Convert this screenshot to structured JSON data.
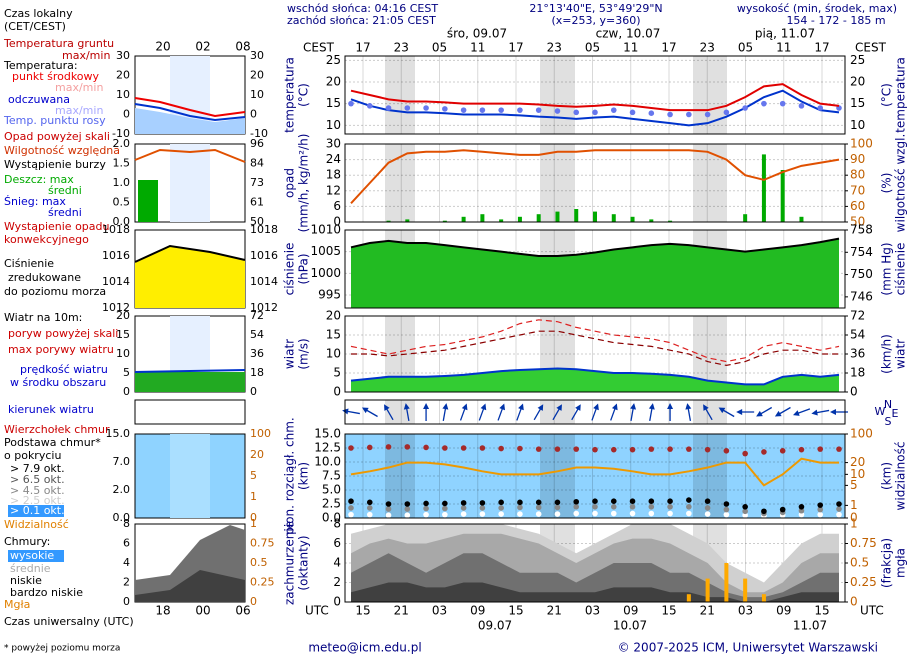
{
  "header": {
    "sunrise": "wschód słońca: 04:16 CEST",
    "sunset": "zachód słońca: 21:05 CEST",
    "coords": "21°13'40\"E, 53°49'29\"N",
    "grid_point": "(x=253,  y=360)",
    "height_title": "wysokość (min, środek, max)",
    "heights": "154 - 172 - 185 m"
  },
  "time_axis": {
    "local_label": "CEST",
    "local_ticks": [
      "17",
      "23",
      "05",
      "11",
      "17",
      "23",
      "05",
      "11",
      "17",
      "23",
      "05",
      "11",
      "17"
    ],
    "days": [
      "śro, 09.07",
      "czw, 10.07",
      "pią, 11.07"
    ],
    "utc_label": "UTC",
    "utc_ticks": [
      "15",
      "21",
      "03",
      "09",
      "15",
      "21",
      "03",
      "09",
      "15",
      "21",
      "03",
      "09",
      "15"
    ],
    "dates": [
      "09.07",
      "10.07",
      "11.07"
    ]
  },
  "legend": {
    "items": [
      "Czas lokalny",
      "(CET/CEST)",
      "Temperatura gruntu",
      "max/min",
      "Temperatura:",
      "punkt środkowy",
      "max/min",
      "odczuwana",
      "max/min",
      "Temp. punktu rosy",
      "Opad powyżej skali",
      "Wilgotność względna",
      "Wystąpienie burzy",
      "Deszcz: max",
      "średni",
      "Śnieg: max",
      "średni",
      "Wystąpienie opadu",
      "konwekcyjnego",
      "Ciśnienie",
      "zredukowane",
      "do poziomu morza",
      "Wiatr na 10m:",
      "poryw powyżej skali",
      "max porywy wiatru",
      "prędkość wiatru",
      "w środku obszaru",
      "kierunek wiatru",
      "Wierzchołek chmur",
      "Podstawa chmur*",
      "o pokryciu",
      "> 7.9 okt.",
      "> 6.5 okt.",
      "> 4.5 okt.",
      "> 2.5 okt.",
      "> 0.1 okt.",
      "Widzialność",
      "Chmury:",
      "wysokie",
      "średnie",
      "niskie",
      "bardzo niskie",
      "Mgła",
      "Czas uniwersalny (UTC)"
    ]
  },
  "mini": {
    "top_ticks": [
      "20",
      "02",
      "08"
    ],
    "bottom_ticks": [
      "18",
      "00",
      "06"
    ],
    "panels": [
      {
        "left": [
          30,
          20,
          10,
          0,
          -10
        ],
        "right": [
          30,
          20,
          10,
          0,
          -10
        ]
      },
      {
        "left": [
          {
            "value": 2,
            "label": "2.0"
          },
          1.5,
          {
            "value": 1,
            "label": "1.0"
          },
          0.5,
          {
            "value": 0,
            "label": "0.0"
          }
        ],
        "right": [
          96,
          84,
          73,
          61,
          50
        ]
      },
      {
        "left": [
          1018,
          1016,
          1014,
          1012
        ],
        "right": [
          1018,
          1016,
          1014,
          1012
        ]
      },
      {
        "left": [
          20,
          15,
          10,
          5,
          0
        ],
        "right": [
          72,
          54,
          36,
          18,
          0
        ]
      },
      {
        "left": [
          {
            "value": 15,
            "label": "15.0"
          },
          {
            "value": 7,
            "label": "7.0"
          },
          {
            "value": 2,
            "label": "2.0"
          },
          {
            "value": 0,
            "label": "0.0"
          }
        ],
        "right": [
          100,
          20,
          5,
          1,
          0
        ]
      },
      {
        "left": [
          8,
          6,
          4,
          2,
          0
        ],
        "right": [
          1,
          0.75,
          0.5,
          0.25,
          0
        ]
      }
    ]
  },
  "chart_data": [
    {
      "type": "line",
      "y_label": "temperatura",
      "y_unit": "(°C)",
      "y2_label": "temperatura",
      "y2_unit": "(°C)",
      "ylim": [
        8,
        26
      ],
      "yticks": [
        10,
        15,
        20,
        25
      ],
      "grid": true,
      "series": [
        {
          "style": "line",
          "color": "#0033cc",
          "values": [
            16,
            14.5,
            13.5,
            13,
            13,
            12.8,
            12.5,
            12.5,
            12.5,
            12.3,
            12,
            11.8,
            11.5,
            11.8,
            12,
            11.5,
            11,
            10.5,
            10,
            10.5,
            12,
            14,
            16.5,
            18,
            15.5,
            13.5,
            13
          ]
        },
        {
          "style": "dots",
          "color": "#6677ee",
          "values": [
            15,
            14.5,
            14,
            14,
            14,
            13.8,
            13.5,
            13.5,
            13.5,
            13.5,
            13.5,
            13.3,
            13,
            13,
            13.5,
            13,
            12.8,
            12.5,
            12.5,
            12.5,
            13,
            14,
            15,
            15,
            14.5,
            14,
            14
          ]
        },
        {
          "style": "line",
          "color": "#e00000",
          "values": [
            18,
            17,
            16,
            15.5,
            15.5,
            15.3,
            15,
            15,
            15,
            15,
            14.8,
            14.5,
            14.3,
            14.5,
            14.8,
            14.5,
            14,
            13.5,
            13.5,
            13.5,
            14.5,
            16.5,
            19,
            19.5,
            17,
            15,
            14.5
          ]
        }
      ]
    },
    {
      "type": "bar",
      "y_label": "opad",
      "y_unit": "(mm/h, kg/m²/h)",
      "y2_label": "wilgotność wzgl.",
      "y2_unit": "(%)",
      "ylim": [
        0,
        30
      ],
      "yticks": [
        0,
        6,
        12,
        18,
        24,
        30
      ],
      "y2lim": [
        50,
        100
      ],
      "y2ticks": [
        50,
        60,
        70,
        80,
        90,
        100
      ],
      "grid": true,
      "series": [
        {
          "style": "bar",
          "color": "#00aa00",
          "values": [
            0,
            0,
            0.5,
            1,
            0,
            0.5,
            2,
            3,
            1,
            2,
            3,
            4,
            5,
            4,
            3,
            2,
            1,
            0.5,
            0,
            0,
            0,
            3,
            26,
            20,
            2,
            0,
            0
          ]
        },
        {
          "style": "line",
          "axis": "y2",
          "color": "#e05000",
          "values": [
            62,
            75,
            88,
            94,
            95,
            95,
            96,
            95,
            94,
            93,
            93,
            95,
            95,
            96,
            96,
            96,
            96,
            96,
            96,
            95,
            90,
            80,
            77,
            82,
            86,
            88,
            90
          ]
        }
      ]
    },
    {
      "type": "area",
      "y_label": "ciśnienie",
      "y_unit": "(hPa)",
      "y2_label": "ciśnienie",
      "y2_unit": "(mm Hg)",
      "ylim": [
        992,
        1010
      ],
      "yticks": [
        995,
        1000,
        1005,
        1010
      ],
      "y2lim": [
        744,
        758
      ],
      "y2ticks": [
        746,
        750,
        754,
        758
      ],
      "grid": true,
      "series": [
        {
          "style": "area",
          "color": "#22bb22",
          "stroke": "#000000",
          "values": [
            1006,
            1007,
            1007.5,
            1007,
            1007,
            1006.5,
            1006,
            1005.5,
            1005,
            1004.5,
            1004,
            1004,
            1004.3,
            1004.8,
            1005.5,
            1006,
            1006.5,
            1006.8,
            1006.5,
            1006,
            1005.5,
            1005,
            1005.5,
            1006,
            1006.5,
            1007.2,
            1008
          ]
        }
      ]
    },
    {
      "type": "line",
      "y_label": "wiatr",
      "y_unit": "(m/s)",
      "y2_label": "wiatr",
      "y2_unit": "(km/h)",
      "ylim": [
        0,
        20
      ],
      "yticks": [
        0,
        5,
        10,
        15,
        20
      ],
      "y2lim": [
        0,
        72
      ],
      "y2ticks": [
        0,
        18,
        36,
        54,
        72
      ],
      "grid": true,
      "series": [
        {
          "style": "area",
          "color": "#33cc33",
          "stroke": "#0033cc",
          "values": [
            3,
            3.5,
            4,
            4,
            4,
            4.2,
            4.5,
            5,
            5.5,
            5.8,
            6,
            6.2,
            6,
            5.5,
            5,
            5,
            4.8,
            4.5,
            4,
            3,
            2.5,
            2,
            2,
            4,
            4.5,
            4,
            4.5
          ]
        },
        {
          "style": "dash",
          "color": "#8b0000",
          "values": [
            10,
            10,
            9.5,
            10,
            10.5,
            11,
            12,
            13,
            14,
            15,
            16,
            16,
            15,
            14,
            13,
            12.5,
            12,
            11,
            10,
            8,
            7,
            8,
            10,
            11,
            11,
            10,
            10
          ]
        },
        {
          "style": "dash",
          "color": "#dd2222",
          "values": [
            12,
            11,
            10,
            11,
            12,
            12.5,
            13.5,
            14.5,
            16,
            18,
            19,
            18.5,
            17,
            16,
            15,
            14.5,
            14,
            13,
            11,
            9,
            8,
            9,
            12,
            13,
            12,
            11,
            12
          ]
        }
      ]
    },
    {
      "type": "arrow",
      "compass": [
        "N",
        "E",
        "S",
        "W"
      ],
      "series": [
        {
          "style": "arrow",
          "color": "#0033aa",
          "values": [
            100,
            120,
            150,
            170,
            180,
            190,
            200,
            200,
            200,
            200,
            210,
            210,
            210,
            200,
            200,
            190,
            190,
            180,
            170,
            150,
            120,
            90,
            60,
            60,
            70,
            80,
            90
          ]
        }
      ]
    },
    {
      "type": "scatter",
      "y_label": "pion. rozciągł. chm.",
      "y_unit": "(km)",
      "y2_label": "widzialność",
      "y2_unit": "(km)",
      "background": "#8fd3ff",
      "ylim": [
        0,
        15
      ],
      "yticks": [
        {
          "value": 0,
          "label": "0.0"
        },
        2.5,
        {
          "value": 5,
          "label": "5.0"
        },
        7.5,
        {
          "value": 10,
          "label": "10.0"
        },
        12.5,
        {
          "value": 15,
          "label": "15.0"
        }
      ],
      "y2lim": [
        0,
        100
      ],
      "y2ticks": [
        0,
        1,
        5,
        10,
        20,
        100
      ],
      "y2scale": "log",
      "grid": true,
      "series": [
        {
          "style": "dots",
          "color": "#ffffff",
          "values": [
            0.6,
            0.6,
            0.5,
            0.5,
            0.6,
            0.6,
            0.7,
            0.7,
            0.7,
            0.7,
            0.7,
            0.7,
            0.8,
            0.8,
            0.8,
            0.8,
            0.8,
            0.8,
            0.8,
            0.7,
            0.6,
            0.5,
            0.4,
            0.5,
            0.6,
            0.6,
            0.6
          ]
        },
        {
          "style": "dots",
          "color": "#888888",
          "values": [
            1.8,
            1.8,
            1.6,
            1.6,
            1.7,
            1.7,
            1.8,
            1.8,
            1.8,
            1.9,
            1.9,
            1.9,
            2,
            2,
            2,
            2,
            2,
            2,
            2,
            1.8,
            1.5,
            1.2,
            0.8,
            1,
            1.3,
            1.5,
            1.6
          ]
        },
        {
          "style": "dots",
          "color": "#000000",
          "values": [
            3,
            2.8,
            2.5,
            2.5,
            2.6,
            2.6,
            2.7,
            2.7,
            2.8,
            2.8,
            2.8,
            2.8,
            2.9,
            3,
            3,
            3,
            3,
            3,
            3.2,
            3,
            2.5,
            2,
            1.2,
            1.5,
            2,
            2.3,
            2.5
          ]
        },
        {
          "style": "line",
          "axis": "y2",
          "color": "#ee9900",
          "values": [
            10,
            12,
            15,
            20,
            20,
            18,
            15,
            12,
            10,
            10,
            10,
            12,
            15,
            15,
            14,
            12,
            10,
            10,
            12,
            15,
            20,
            20,
            5,
            10,
            25,
            20,
            20
          ]
        },
        {
          "style": "dots",
          "color": "#a52a2a",
          "values": [
            12.5,
            12.6,
            12.7,
            12.7,
            12.6,
            12.5,
            12.5,
            12.5,
            12.4,
            12.4,
            12.3,
            12.3,
            12.3,
            12.2,
            12.2,
            12.2,
            12.3,
            12.3,
            12.3,
            12.2,
            12,
            11.5,
            11.8,
            12,
            12.2,
            12.3,
            12.3
          ]
        }
      ]
    },
    {
      "type": "area",
      "y_label": "zachmurzenie",
      "y_unit": "(oktanty)",
      "y2_label": "mgła",
      "y2_unit": "(frakcja)",
      "ylim": [
        0,
        8
      ],
      "yticks": [
        0,
        2,
        4,
        6,
        8
      ],
      "y2lim": [
        0,
        1
      ],
      "y2ticks": [
        0,
        0.25,
        0.5,
        0.75,
        1
      ],
      "grid": true,
      "series": [
        {
          "style": "area",
          "color": "#d0d0d0",
          "values": [
            7,
            7.5,
            8,
            8,
            8,
            8,
            8,
            8,
            8,
            7.5,
            7,
            6,
            5,
            6,
            7,
            8,
            8,
            8,
            7,
            6,
            4,
            3,
            2,
            4,
            6,
            7,
            7
          ]
        },
        {
          "style": "area",
          "color": "#a8a8a8",
          "values": [
            5,
            6,
            6.5,
            6,
            6,
            6.5,
            7,
            7,
            7,
            6.5,
            6,
            5,
            4,
            5,
            6,
            6.5,
            6.5,
            6,
            5,
            4,
            2,
            1,
            1,
            2,
            4,
            5,
            5
          ]
        },
        {
          "style": "area",
          "color": "#707070",
          "values": [
            3,
            4,
            5,
            4,
            3,
            4,
            5,
            5,
            4,
            3,
            3,
            3,
            2,
            3,
            4,
            4,
            4,
            3,
            3,
            2,
            1,
            0.5,
            0.5,
            1,
            2,
            3,
            3
          ]
        },
        {
          "style": "area",
          "color": "#404040",
          "values": [
            1,
            1.5,
            2,
            2,
            1.5,
            1.5,
            2,
            2,
            1.5,
            1,
            1,
            1,
            1,
            1,
            1.5,
            1.5,
            1.5,
            1,
            1,
            0.5,
            0.5,
            0,
            0,
            0.5,
            1,
            1,
            1
          ]
        },
        {
          "style": "bar",
          "axis": "y2",
          "color": "#ffaa00",
          "values": [
            0,
            0,
            0,
            0,
            0,
            0,
            0,
            0,
            0,
            0,
            0,
            0,
            0,
            0,
            0,
            0,
            0,
            0,
            0.1,
            0.3,
            0.5,
            0.3,
            0.1,
            0,
            0,
            0,
            0
          ]
        }
      ]
    }
  ],
  "footer": {
    "note": "* powyżej poziomu morza",
    "email": "meteo@icm.edu.pl",
    "copyright": "© 2007-2025 ICM, Uniwersytet Warszawski"
  }
}
